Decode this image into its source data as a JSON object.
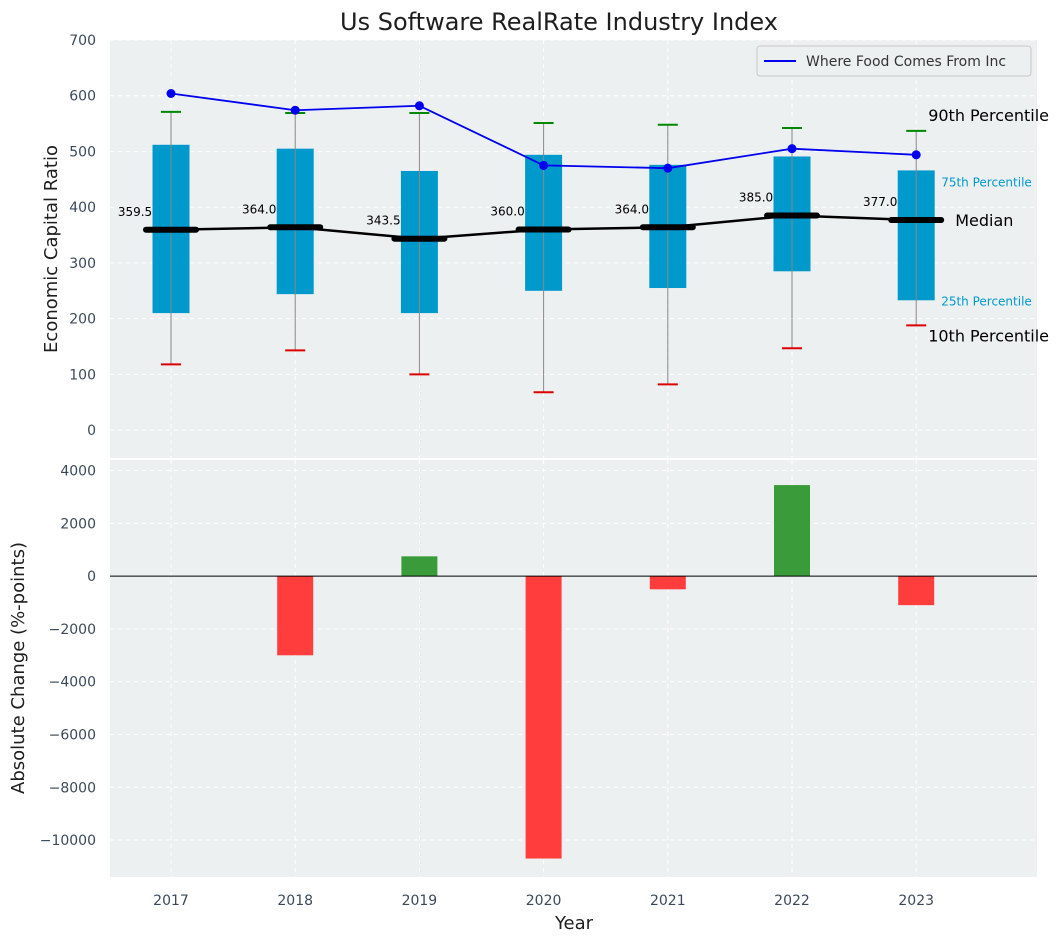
{
  "chart_data": [
    {
      "type": "box",
      "title": "Us Software RealRate Industry Index",
      "ylabel": "Economic Capital Ratio",
      "ylim": [
        -50,
        700
      ],
      "yticks": [
        0,
        100,
        200,
        300,
        400,
        500,
        600,
        700
      ],
      "grid": true,
      "categories": [
        "2017",
        "2018",
        "2019",
        "2020",
        "2021",
        "2022",
        "2023"
      ],
      "p10": [
        118,
        143,
        100,
        68,
        82,
        147,
        188
      ],
      "p25": [
        210,
        244,
        210,
        250,
        255,
        285,
        233
      ],
      "median": [
        359.5,
        364.0,
        343.5,
        360.0,
        364.0,
        385.0,
        377.0
      ],
      "median_labels": [
        "359.5",
        "364.0",
        "343.5",
        "360.0",
        "364.0",
        "385.0",
        "377.0"
      ],
      "p75": [
        512,
        505,
        465,
        494,
        476,
        491,
        466
      ],
      "p90": [
        571,
        569,
        569,
        551,
        548,
        542,
        537
      ],
      "series": [
        {
          "name": "Where Food Comes From Inc",
          "values": [
            604,
            574,
            582,
            475,
            470,
            505,
            494
          ],
          "color": "#0000ee"
        }
      ],
      "legend_placement": "top-right",
      "annotations": {
        "p90": "90th Percentile",
        "p75": "75th Percentile",
        "median": "Median",
        "p25": "25th Percentile",
        "p10": "10th Percentile"
      },
      "colors": {
        "box": "#0099cc",
        "median": "#000000",
        "p90_cap": "#008800",
        "p10_cap": "#dd0000",
        "background": "#ecf0f1"
      }
    },
    {
      "type": "bar",
      "xlabel": "Year",
      "ylabel": "Absolute Change (%-points)",
      "ylim": [
        -11400,
        4400
      ],
      "yticks": [
        -10000,
        -8000,
        -6000,
        -4000,
        -2000,
        0,
        2000,
        4000
      ],
      "ytick_labels": [
        "−10000",
        "−8000",
        "−6000",
        "−4000",
        "−2000",
        "0",
        "2000",
        "4000"
      ],
      "grid": true,
      "categories": [
        "2017",
        "2018",
        "2019",
        "2020",
        "2021",
        "2022",
        "2023"
      ],
      "values": [
        0,
        -3000,
        750,
        -10700,
        -500,
        3450,
        -1100
      ],
      "colors": {
        "positive": "#3a9b3a",
        "negative": "#ff3d3d"
      }
    }
  ]
}
